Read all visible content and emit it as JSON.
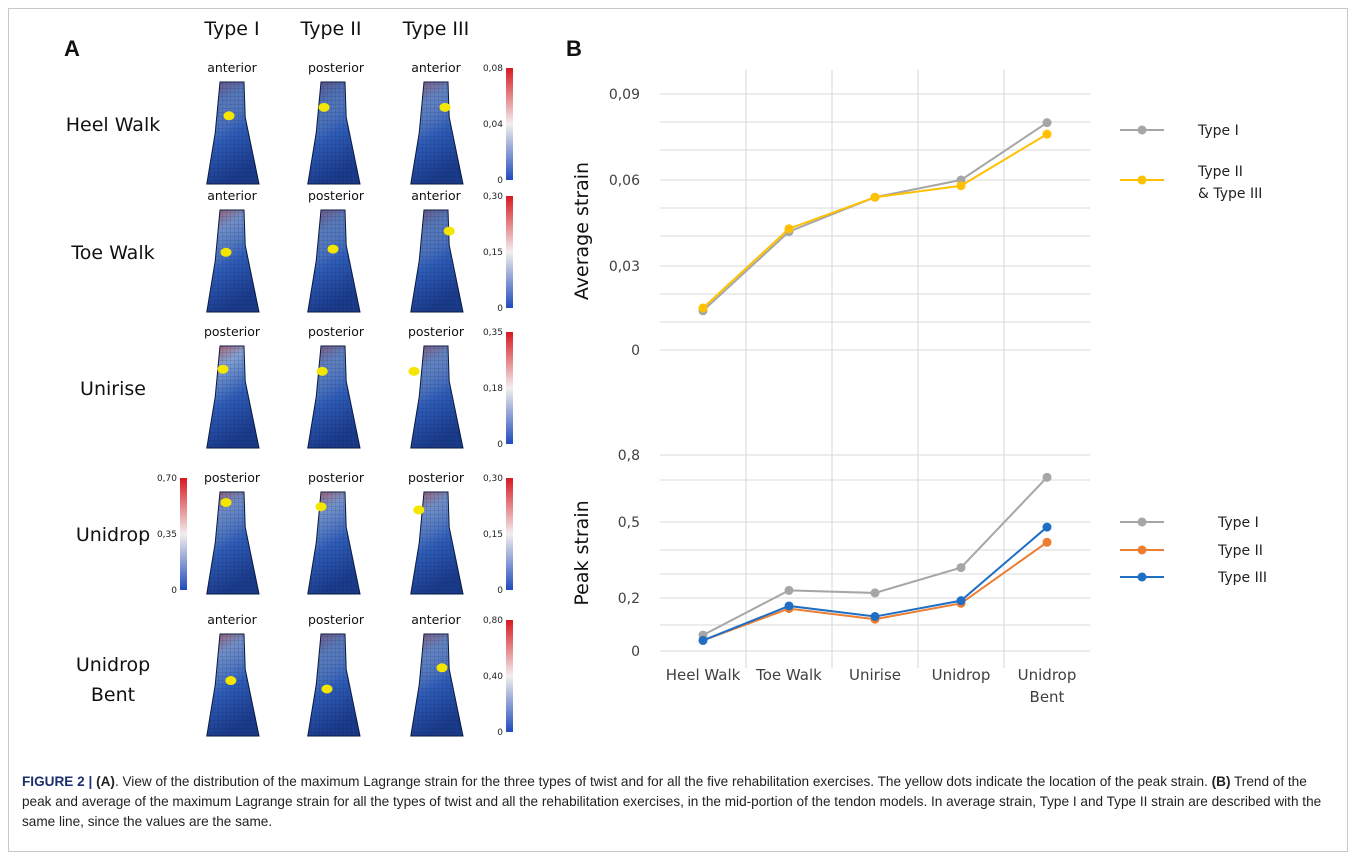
{
  "panels": {
    "a": "A",
    "b": "B"
  },
  "panel_a": {
    "types": [
      "Type I",
      "Type II",
      "Type III"
    ],
    "exercises": [
      {
        "label": [
          "Heel Walk"
        ],
        "views": [
          "anterior",
          "posterior",
          "anterior"
        ],
        "scale": {
          "max": "0,08",
          "mid": "0,04",
          "min": "0"
        }
      },
      {
        "label": [
          "Toe Walk"
        ],
        "views": [
          "anterior",
          "posterior",
          "anterior"
        ],
        "scale": {
          "max": "0,30",
          "mid": "0,15",
          "min": "0"
        }
      },
      {
        "label": [
          "Unirise"
        ],
        "views": [
          "posterior",
          "posterior",
          "posterior"
        ],
        "scale": {
          "max": "0,35",
          "mid": "0,18",
          "min": "0"
        }
      },
      {
        "label": [
          "Unidrop"
        ],
        "views": [
          "posterior",
          "posterior",
          "posterior"
        ],
        "scale": {
          "max": "0,30",
          "mid": "0,15",
          "min": "0"
        },
        "scale_type1": {
          "max": "0,70",
          "mid": "0,35",
          "min": "0"
        }
      },
      {
        "label": [
          "Unidrop",
          "Bent"
        ],
        "views": [
          "anterior",
          "posterior",
          "anterior"
        ],
        "scale": {
          "max": "0,80",
          "mid": "0,40",
          "min": "0"
        }
      }
    ],
    "colors": {
      "high": "#d71920",
      "mid": "#f2eeee",
      "low": "#1f4bbd",
      "tendon": "#1f3f86",
      "peak_dot": "#f5e600"
    }
  },
  "chart_data": [
    {
      "type": "line",
      "ylabel": "Average strain",
      "categories": [
        "Heel Walk",
        "Toe Walk",
        "Unirise",
        "Unidrop",
        "Unidrop Bent"
      ],
      "yticks": [
        "0,09",
        "0,06",
        "0,03",
        "0"
      ],
      "ylim": [
        0,
        0.09
      ],
      "series": [
        {
          "name": "Type I",
          "color": "#a6a6a6",
          "values": [
            0.014,
            0.042,
            0.054,
            0.06,
            0.08
          ]
        },
        {
          "name": "Type II & Type III",
          "legend_lines": [
            "Type II",
            "& Type III"
          ],
          "color": "#ffc000",
          "values": [
            0.015,
            0.043,
            0.054,
            0.058,
            0.076
          ]
        }
      ],
      "legend": "right"
    },
    {
      "type": "line",
      "ylabel": "Peak strain",
      "categories": [
        "Heel Walk",
        "Toe Walk",
        "Unirise",
        "Unidrop",
        "Unidrop Bent"
      ],
      "yticks": [
        "0,8",
        "0,5",
        "0,2",
        "0"
      ],
      "ylim": [
        0,
        0.8
      ],
      "series": [
        {
          "name": "Type I",
          "color": "#a6a6a6",
          "values": [
            0.06,
            0.23,
            0.22,
            0.32,
            0.7
          ]
        },
        {
          "name": "Type II",
          "color": "#ed7d31",
          "values": [
            0.04,
            0.16,
            0.12,
            0.18,
            0.42
          ]
        },
        {
          "name": "Type III",
          "color": "#1f6fc4",
          "values": [
            0.04,
            0.17,
            0.13,
            0.19,
            0.48
          ]
        }
      ],
      "legend": "right"
    }
  ],
  "x_labels": [
    [
      "Heel Walk"
    ],
    [
      "Toe Walk"
    ],
    [
      "Unirise"
    ],
    [
      "Unidrop"
    ],
    [
      "Unidrop",
      "Bent"
    ]
  ],
  "caption": {
    "fig": "FIGURE 2 | ",
    "a_ref": "(A)",
    "a_text": ". View of the distribution of the maximum Lagrange strain for the three types of twist and for all the five rehabilitation exercises. The yellow dots indicate the location of the peak strain. ",
    "b_ref": "(B)",
    "b_text": " Trend of the peak and average of the maximum Lagrange strain for all the types of twist and all the rehabilitation exercises, in the mid-portion of the tendon models. In average strain, Type I and Type II strain are described with the same line, since the values are the same."
  }
}
